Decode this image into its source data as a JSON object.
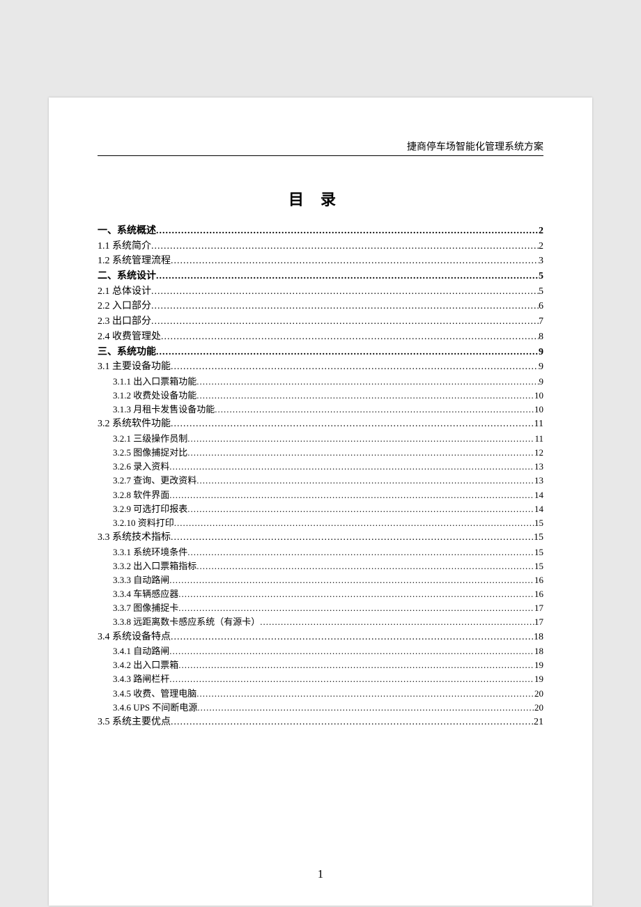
{
  "header_text": "捷商停车场智能化管理系统方案",
  "title_text": "目录",
  "page_number": "1",
  "toc": [
    {
      "label": "一、系统概述",
      "page": "2",
      "level": 0
    },
    {
      "label": "1.1 系统简介",
      "page": "2",
      "level": 1
    },
    {
      "label": "1.2 系统管理流程",
      "page": "3",
      "level": 1
    },
    {
      "label": "二、系统设计",
      "page": "5",
      "level": 0
    },
    {
      "label": "2.1 总体设计",
      "page": "5",
      "level": 1
    },
    {
      "label": "2.2 入口部分",
      "page": "6",
      "level": 1
    },
    {
      "label": "2.3 出口部分",
      "page": "7",
      "level": 1
    },
    {
      "label": "2.4 收费管理处",
      "page": "8",
      "level": 1
    },
    {
      "label": "三、系统功能",
      "page": "9",
      "level": 0
    },
    {
      "label": "3.1 主要设备功能",
      "page": "9",
      "level": 1
    },
    {
      "label": "3.1.1 出入口票箱功能",
      "page": "9",
      "level": 2
    },
    {
      "label": "3.1.2 收费处设备功能",
      "page": "10",
      "level": 2
    },
    {
      "label": "3.1.3 月租卡发售设备功能",
      "page": "10",
      "level": 2
    },
    {
      "label": "3.2 系统软件功能",
      "page": "11",
      "level": 1
    },
    {
      "label": "3.2.1 三级操作员制",
      "page": "11",
      "level": 2
    },
    {
      "label": "3.2.5 图像捕捉对比",
      "page": "12",
      "level": 2
    },
    {
      "label": "3.2.6 录入资料",
      "page": "13",
      "level": 2
    },
    {
      "label": "3.2.7 查询、更改资料",
      "page": "13",
      "level": 2
    },
    {
      "label": "3.2.8 软件界面",
      "page": "14",
      "level": 2
    },
    {
      "label": "3.2.9 可选打印报表",
      "page": "14",
      "level": 2
    },
    {
      "label": "3.2.10 资料打印",
      "page": "15",
      "level": 2
    },
    {
      "label": "3.3 系统技术指标",
      "page": "15",
      "level": 1
    },
    {
      "label": "3.3.1 系统环境条件",
      "page": "15",
      "level": 2
    },
    {
      "label": "3.3.2 出入口票箱指标",
      "page": "15",
      "level": 2
    },
    {
      "label": "3.3.3 自动路闸",
      "page": "16",
      "level": 2
    },
    {
      "label": "3.3.4 车辆感应器",
      "page": "16",
      "level": 2
    },
    {
      "label": "3.3.7 图像捕捉卡",
      "page": "17",
      "level": 2
    },
    {
      "label": "3.3.8 远距离数卡感应系统（有源卡）",
      "page": "17",
      "level": 2
    },
    {
      "label": "3.4 系统设备特点",
      "page": "18",
      "level": 1
    },
    {
      "label": "3.4.1 自动路闸",
      "page": "18",
      "level": 2
    },
    {
      "label": "3.4.2 出入口票箱",
      "page": "19",
      "level": 2
    },
    {
      "label": "3.4.3 路闸栏杆",
      "page": "19",
      "level": 2
    },
    {
      "label": "3.4.5 收费、管理电脑",
      "page": "20",
      "level": 2
    },
    {
      "label": "3.4.6 UPS 不间断电源",
      "page": "20",
      "level": 2
    },
    {
      "label": "3.5 系统主要优点",
      "page": "21",
      "level": 1
    }
  ]
}
